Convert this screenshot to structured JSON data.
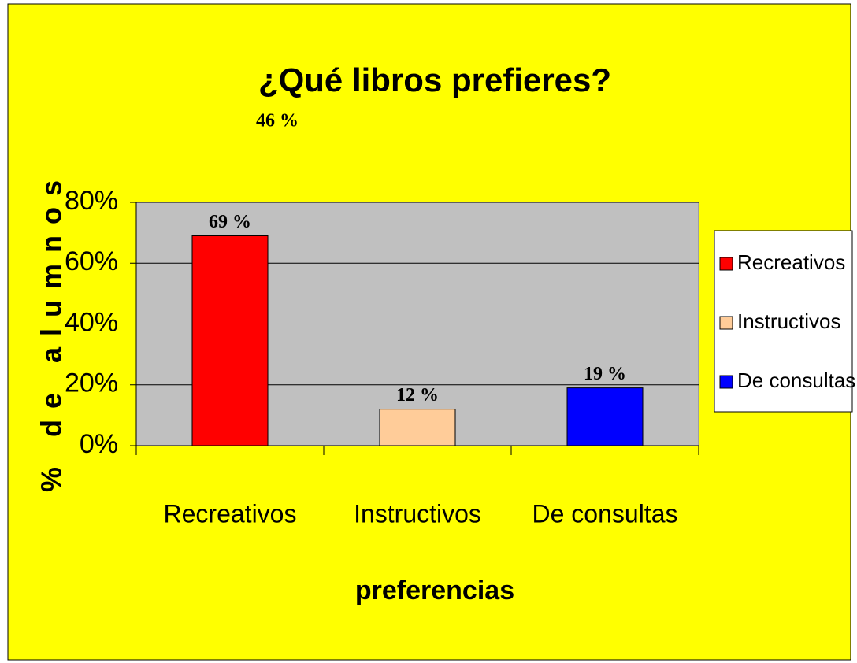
{
  "chart_data": {
    "type": "bar",
    "title": "¿Qué libros prefieres?",
    "annotation": "46 %",
    "y_label": "% de alumnos",
    "x_label": "preferencias",
    "categories": [
      "Recreativos",
      "Instructivos",
      "De consultas"
    ],
    "values": [
      69,
      12,
      19
    ],
    "value_labels": [
      "69 %",
      "12 %",
      "19 %"
    ],
    "colors": [
      "#ff0000",
      "#ffcc99",
      "#0000ff"
    ],
    "ylim": [
      0,
      80
    ],
    "yticks": [
      {
        "value": 0,
        "label": "0%"
      },
      {
        "value": 20,
        "label": "20%"
      },
      {
        "value": 40,
        "label": "40%"
      },
      {
        "value": 60,
        "label": "60%"
      },
      {
        "value": 80,
        "label": "80%"
      }
    ],
    "grid": true,
    "legend": "right"
  }
}
